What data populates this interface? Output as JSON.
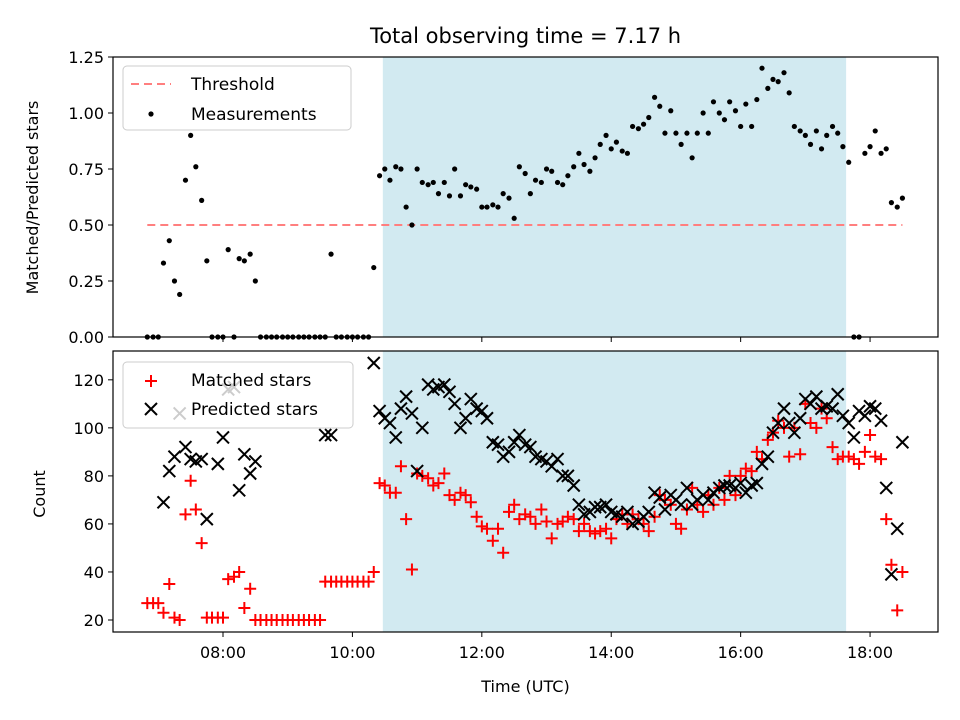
{
  "chart_data": [
    {
      "type": "scatter",
      "title": "Total observing time = 7.17 h",
      "ylabel": "Matched/Predicted stars",
      "xlabel": "",
      "xlim": [
        6.3,
        19.05
      ],
      "ylim": [
        0,
        1.25
      ],
      "yticks": [
        0.0,
        0.25,
        0.5,
        0.75,
        1.0,
        1.25
      ],
      "ytick_labels": [
        "0.00",
        "0.25",
        "0.50",
        "0.75",
        "1.00",
        "1.25"
      ],
      "shaded_span": [
        10.47,
        17.63
      ],
      "shaded_color": "#add8e6",
      "threshold": {
        "name": "Threshold",
        "value": 0.5,
        "x_range": [
          6.83,
          18.5
        ],
        "color": "#ff7f7f",
        "style": "dashed"
      },
      "legend": {
        "placement": "upper-left",
        "entries": [
          "Threshold",
          "Measurements"
        ]
      },
      "series": [
        {
          "name": "Measurements",
          "marker": "dot",
          "color": "#000000",
          "x": [
            6.83,
            6.92,
            7.0,
            7.08,
            7.17,
            7.25,
            7.33,
            7.42,
            7.5,
            7.58,
            7.67,
            7.75,
            7.83,
            7.92,
            8.0,
            8.08,
            8.17,
            8.25,
            8.33,
            8.42,
            8.5,
            8.58,
            8.67,
            8.75,
            8.83,
            8.92,
            9.0,
            9.08,
            9.17,
            9.25,
            9.33,
            9.42,
            9.5,
            9.58,
            9.67,
            9.75,
            9.83,
            9.92,
            10.0,
            10.08,
            10.17,
            10.25,
            10.33,
            10.42,
            10.5,
            10.58,
            10.67,
            10.75,
            10.83,
            10.92,
            11.0,
            11.08,
            11.17,
            11.25,
            11.33,
            11.42,
            11.5,
            11.58,
            11.67,
            11.75,
            11.83,
            11.92,
            12.0,
            12.08,
            12.17,
            12.25,
            12.33,
            12.42,
            12.5,
            12.58,
            12.67,
            12.75,
            12.83,
            12.92,
            13.0,
            13.08,
            13.17,
            13.25,
            13.33,
            13.42,
            13.5,
            13.58,
            13.67,
            13.75,
            13.83,
            13.92,
            14.0,
            14.08,
            14.17,
            14.25,
            14.33,
            14.42,
            14.5,
            14.58,
            14.67,
            14.75,
            14.83,
            14.92,
            15.0,
            15.08,
            15.17,
            15.25,
            15.33,
            15.42,
            15.5,
            15.58,
            15.67,
            15.75,
            15.83,
            15.92,
            16.0,
            16.08,
            16.17,
            16.25,
            16.33,
            16.42,
            16.5,
            16.58,
            16.67,
            16.75,
            16.83,
            16.92,
            17.0,
            17.08,
            17.17,
            17.25,
            17.33,
            17.42,
            17.5,
            17.58,
            17.67,
            17.75,
            17.83,
            17.92,
            18.0,
            18.08,
            18.17,
            18.25,
            18.33,
            18.42,
            18.5
          ],
          "y": [
            0.0,
            0.0,
            0.0,
            0.33,
            0.43,
            0.25,
            0.19,
            0.7,
            0.9,
            0.76,
            0.61,
            0.34,
            0.0,
            0.0,
            0.0,
            0.39,
            0.0,
            0.35,
            0.34,
            0.37,
            0.25,
            0.0,
            0.0,
            0.0,
            0.0,
            0.0,
            0.0,
            0.0,
            0.0,
            0.0,
            0.0,
            0.0,
            0.0,
            0.0,
            0.37,
            0.0,
            0.0,
            0.0,
            0.0,
            0.0,
            0.0,
            0.0,
            0.31,
            0.72,
            0.75,
            0.7,
            0.76,
            0.75,
            0.58,
            0.5,
            0.75,
            0.69,
            0.68,
            0.69,
            0.64,
            0.69,
            0.63,
            0.75,
            0.63,
            0.68,
            0.67,
            0.66,
            0.58,
            0.58,
            0.59,
            0.58,
            0.64,
            0.62,
            0.53,
            0.76,
            0.73,
            0.64,
            0.7,
            0.69,
            0.75,
            0.74,
            0.69,
            0.68,
            0.72,
            0.76,
            0.82,
            0.77,
            0.74,
            0.8,
            0.86,
            0.9,
            0.84,
            0.87,
            0.83,
            0.82,
            0.94,
            0.93,
            0.95,
            0.98,
            1.07,
            1.03,
            0.91,
            1.01,
            0.91,
            0.86,
            0.91,
            0.8,
            0.91,
            1.0,
            0.91,
            1.05,
            1.0,
            0.97,
            1.05,
            1.01,
            0.94,
            1.04,
            0.94,
            1.06,
            1.2,
            1.11,
            1.15,
            1.14,
            1.18,
            1.09,
            0.94,
            0.92,
            0.9,
            0.86,
            0.92,
            0.84,
            0.9,
            0.94,
            0.91,
            0.85,
            0.78,
            0.0,
            0.0,
            0.82,
            0.85,
            0.92,
            0.82,
            0.84,
            0.6,
            0.58,
            0.62
          ]
        }
      ]
    },
    {
      "type": "scatter",
      "title": "",
      "ylabel": "Count",
      "xlabel": "Time (UTC)",
      "xlim": [
        6.3,
        19.05
      ],
      "ylim": [
        15,
        132
      ],
      "yticks": [
        20,
        40,
        60,
        80,
        100,
        120
      ],
      "ytick_labels": [
        "20",
        "40",
        "60",
        "80",
        "100",
        "120"
      ],
      "xticks": [
        8,
        10,
        12,
        14,
        16,
        18
      ],
      "xtick_labels": [
        "08:00",
        "10:00",
        "12:00",
        "14:00",
        "16:00",
        "18:00"
      ],
      "shaded_span": [
        10.47,
        17.63
      ],
      "shaded_color": "#add8e6",
      "legend": {
        "placement": "upper-left",
        "entries": [
          "Matched stars",
          "Predicted stars"
        ]
      },
      "series": [
        {
          "name": "Matched stars",
          "marker": "plus",
          "color": "#ff0000",
          "x": [
            6.83,
            6.92,
            7.0,
            7.08,
            7.17,
            7.25,
            7.33,
            7.42,
            7.5,
            7.58,
            7.67,
            7.75,
            7.83,
            7.92,
            8.0,
            8.08,
            8.17,
            8.25,
            8.33,
            8.42,
            8.5,
            8.58,
            8.67,
            8.75,
            8.83,
            8.92,
            9.0,
            9.08,
            9.17,
            9.25,
            9.33,
            9.42,
            9.5,
            9.58,
            9.67,
            9.75,
            9.83,
            9.92,
            10.0,
            10.08,
            10.17,
            10.25,
            10.33,
            10.42,
            10.5,
            10.58,
            10.67,
            10.75,
            10.83,
            10.92,
            11.0,
            11.08,
            11.17,
            11.25,
            11.33,
            11.42,
            11.5,
            11.58,
            11.67,
            11.75,
            11.83,
            11.92,
            12.0,
            12.08,
            12.17,
            12.25,
            12.33,
            12.42,
            12.5,
            12.58,
            12.67,
            12.75,
            12.83,
            12.92,
            13.0,
            13.08,
            13.17,
            13.25,
            13.33,
            13.42,
            13.5,
            13.58,
            13.67,
            13.75,
            13.83,
            13.92,
            14.0,
            14.08,
            14.17,
            14.25,
            14.33,
            14.42,
            14.5,
            14.58,
            14.67,
            14.75,
            14.83,
            14.92,
            15.0,
            15.08,
            15.17,
            15.25,
            15.33,
            15.42,
            15.5,
            15.58,
            15.67,
            15.75,
            15.83,
            15.92,
            16.0,
            16.08,
            16.17,
            16.25,
            16.33,
            16.42,
            16.5,
            16.58,
            16.67,
            16.75,
            16.83,
            16.92,
            17.0,
            17.08,
            17.17,
            17.25,
            17.33,
            17.42,
            17.5,
            17.58,
            17.67,
            17.75,
            17.83,
            17.92,
            18.0,
            18.08,
            18.17,
            18.25,
            18.33,
            18.42,
            18.5
          ],
          "y": [
            27,
            27,
            27,
            23,
            35,
            21,
            20,
            64,
            78,
            66,
            52,
            21,
            21,
            21,
            21,
            37,
            38,
            40,
            25,
            33,
            20,
            20,
            20,
            20,
            20,
            20,
            20,
            20,
            20,
            20,
            20,
            20,
            20,
            36,
            36,
            36,
            36,
            36,
            36,
            36,
            36,
            36,
            40,
            77,
            76,
            73,
            73,
            84,
            62,
            41,
            81,
            80,
            79,
            76,
            77,
            81,
            72,
            70,
            73,
            72,
            69,
            63,
            59,
            58,
            53,
            58,
            48,
            65,
            68,
            62,
            64,
            63,
            60,
            66,
            61,
            54,
            60,
            61,
            63,
            62,
            57,
            60,
            57,
            56,
            57,
            58,
            54,
            62,
            64,
            60,
            64,
            62,
            60,
            57,
            63,
            72,
            70,
            68,
            60,
            58,
            66,
            75,
            68,
            65,
            72,
            68,
            75,
            70,
            80,
            72,
            80,
            83,
            82,
            90,
            87,
            95,
            98,
            103,
            100,
            88,
            100,
            89,
            110,
            102,
            100,
            108,
            104,
            92,
            87,
            88,
            88,
            87,
            85,
            90,
            97,
            88,
            87,
            62,
            43,
            24,
            40
          ]
        },
        {
          "name": "Predicted stars",
          "marker": "x",
          "color": "#000000",
          "x": [
            7.08,
            7.17,
            7.25,
            7.33,
            7.42,
            7.5,
            7.58,
            7.67,
            7.75,
            7.92,
            8.0,
            8.08,
            8.17,
            8.25,
            8.33,
            8.42,
            8.5,
            9.58,
            9.67,
            10.33,
            10.42,
            10.5,
            10.58,
            10.67,
            10.75,
            10.83,
            10.92,
            11.0,
            11.08,
            11.17,
            11.25,
            11.33,
            11.42,
            11.5,
            11.58,
            11.67,
            11.75,
            11.83,
            11.92,
            12.0,
            12.08,
            12.17,
            12.25,
            12.33,
            12.42,
            12.5,
            12.58,
            12.67,
            12.75,
            12.83,
            12.92,
            13.0,
            13.08,
            13.17,
            13.25,
            13.33,
            13.42,
            13.5,
            13.58,
            13.67,
            13.75,
            13.83,
            13.92,
            14.0,
            14.08,
            14.17,
            14.25,
            14.33,
            14.42,
            14.5,
            14.58,
            14.67,
            14.75,
            14.83,
            14.92,
            15.0,
            15.08,
            15.17,
            15.25,
            15.33,
            15.42,
            15.5,
            15.58,
            15.67,
            15.75,
            15.83,
            15.92,
            16.0,
            16.08,
            16.17,
            16.25,
            16.33,
            16.42,
            16.5,
            16.58,
            16.67,
            16.75,
            16.83,
            16.92,
            17.0,
            17.08,
            17.17,
            17.25,
            17.33,
            17.42,
            17.5,
            17.58,
            17.67,
            17.75,
            17.83,
            17.92,
            18.0,
            18.08,
            18.17,
            18.25,
            18.33,
            18.42,
            18.5
          ],
          "y": [
            69,
            82,
            88,
            106,
            92,
            87,
            86,
            87,
            62,
            85,
            96,
            116,
            117,
            74,
            89,
            81,
            86,
            97,
            97,
            127,
            107,
            104,
            102,
            96,
            108,
            113,
            106,
            82,
            100,
            118,
            116,
            117,
            118,
            115,
            110,
            100,
            104,
            112,
            108,
            107,
            104,
            94,
            93,
            88,
            90,
            94,
            97,
            93,
            92,
            88,
            87,
            86,
            84,
            87,
            80,
            80,
            76,
            68,
            64,
            65,
            67,
            67,
            68,
            65,
            64,
            63,
            65,
            60,
            61,
            63,
            65,
            73,
            71,
            66,
            72,
            70,
            68,
            75,
            68,
            70,
            72,
            70,
            73,
            75,
            76,
            76,
            75,
            77,
            73,
            76,
            77,
            85,
            88,
            98,
            102,
            108,
            102,
            98,
            104,
            112,
            110,
            113,
            108,
            109,
            108,
            114,
            105,
            102,
            96,
            107,
            105,
            109,
            108,
            103,
            75,
            39,
            58,
            94
          ]
        }
      ]
    }
  ]
}
